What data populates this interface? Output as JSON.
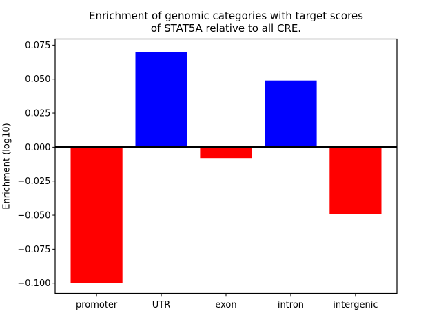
{
  "figure": {
    "title_line1": "Enrichment of genomic categories with target scores",
    "title_line2": "of STAT5A relative to all CRE.",
    "background_color": "#ffffff"
  },
  "chart_data": {
    "type": "bar",
    "title": "Enrichment of genomic categories with target scores of STAT5A relative to all CRE.",
    "xlabel": "",
    "ylabel": "Enrichment (log10)",
    "categories": [
      "promoter",
      "UTR",
      "exon",
      "intron",
      "intergenic"
    ],
    "values": [
      -0.1,
      0.07,
      -0.008,
      0.049,
      -0.049
    ],
    "bar_colors": [
      "#ff0000",
      "#0000ff",
      "#ff0000",
      "#0000ff",
      "#ff0000"
    ],
    "positive_color": "#0000ff",
    "negative_color": "#ff0000",
    "bar_width": 0.8,
    "xlim": [
      -0.64,
      4.64
    ],
    "ylim": [
      -0.1075,
      0.0795
    ],
    "yticks": [
      0.075,
      0.05,
      0.025,
      0,
      -0.025,
      -0.05,
      -0.075,
      -0.1
    ],
    "ytick_labels": [
      "0.075",
      "0.050",
      "0.025",
      "0.000",
      "−0.025",
      "−0.050",
      "−0.075",
      "−0.100"
    ],
    "zero_line": true,
    "zero_line_color": "#000000",
    "grid": false,
    "legend": null,
    "axis_color": "#000000",
    "text_color": "#000000"
  }
}
